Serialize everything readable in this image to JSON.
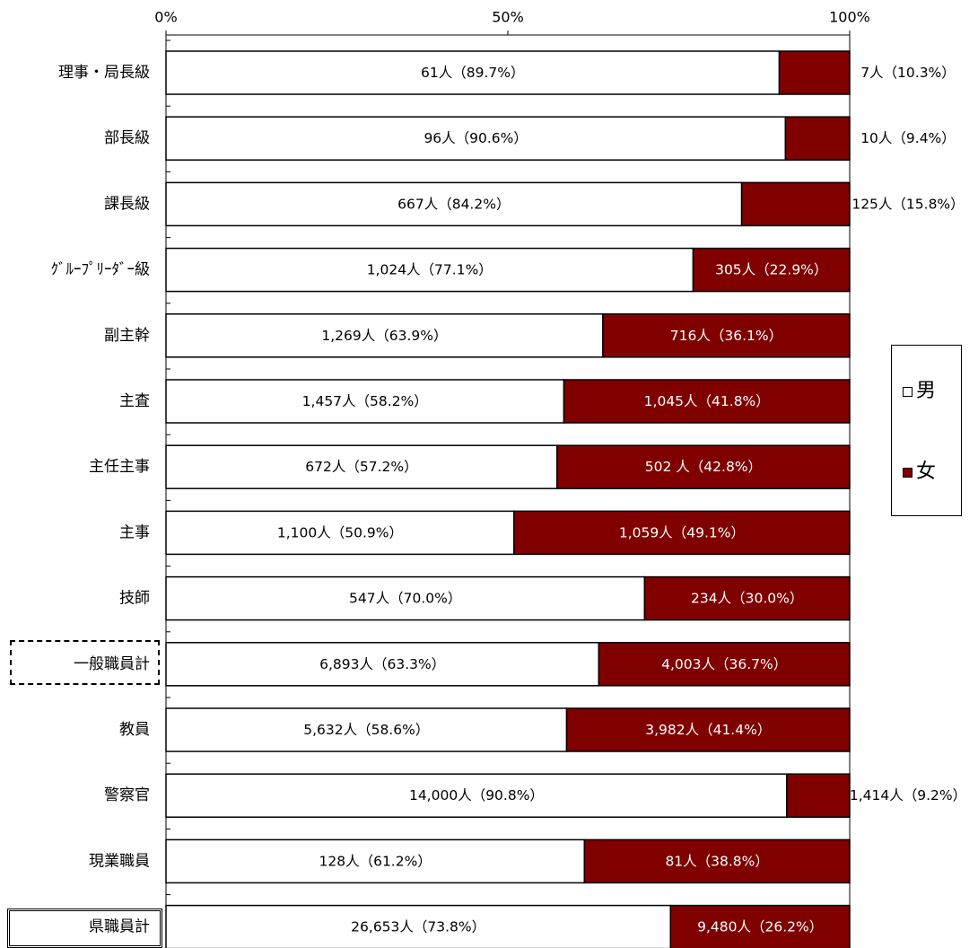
{
  "chart_data": {
    "type": "bar",
    "stacked": true,
    "orientation": "horizontal",
    "percent_axis": true,
    "xlim": [
      0,
      100
    ],
    "ticks": [
      "0%",
      "50%",
      "100%"
    ],
    "categories": [
      "理事・局長級",
      "部長級",
      "課長級",
      "ｸﾞﾙｰﾌﾟﾘｰﾀﾞｰ級",
      "副主幹",
      "主査",
      "主任主事",
      "主事",
      "技師",
      "一般職員計",
      "教員",
      "警察官",
      "現業職員",
      "県職員計"
    ],
    "series": [
      {
        "name": "男",
        "color": "#ffffff",
        "values": [
          89.7,
          90.6,
          84.2,
          77.1,
          63.9,
          58.2,
          57.2,
          50.9,
          70.0,
          63.3,
          58.6,
          90.8,
          61.2,
          73.8
        ],
        "labels": [
          "61人（89.7%）",
          "96人（90.6%）",
          "667人（84.2%）",
          "1,024人（77.1%）",
          "1,269人（63.9%）",
          "1,457人（58.2%）",
          "672人（57.2%）",
          "1,100人（50.9%）",
          "547人（70.0%）",
          "6,893人（63.3%）",
          "5,632人（58.6%）",
          "14,000人（90.8%）",
          "128人（61.2%）",
          "26,653人（73.8%）"
        ]
      },
      {
        "name": "女",
        "color": "#800000",
        "values": [
          10.3,
          9.4,
          15.8,
          22.9,
          36.1,
          41.8,
          42.8,
          49.1,
          30.0,
          36.7,
          41.4,
          9.2,
          38.8,
          26.2
        ],
        "labels": [
          "7人（10.3%）",
          "10人（9.4%）",
          "125人（15.8%）",
          "305人（22.9%）",
          "716人（36.1%）",
          "1,045人（41.8%）",
          "502 人（42.8%）",
          "1,059人（49.1%）",
          "234人（30.0%）",
          "4,003人（36.7%）",
          "3,982人（41.4%）",
          "1,414人（9.2%）",
          "81人（38.8%）",
          "9,480人（26.2%）"
        ],
        "label_outside": [
          true,
          true,
          true,
          false,
          false,
          false,
          false,
          false,
          false,
          false,
          false,
          true,
          false,
          false
        ]
      }
    ],
    "boxed_categories": {
      "一般職員計": "dashed",
      "県職員計": "double"
    },
    "legend": {
      "position": "right",
      "items": [
        "男",
        "女"
      ]
    }
  }
}
